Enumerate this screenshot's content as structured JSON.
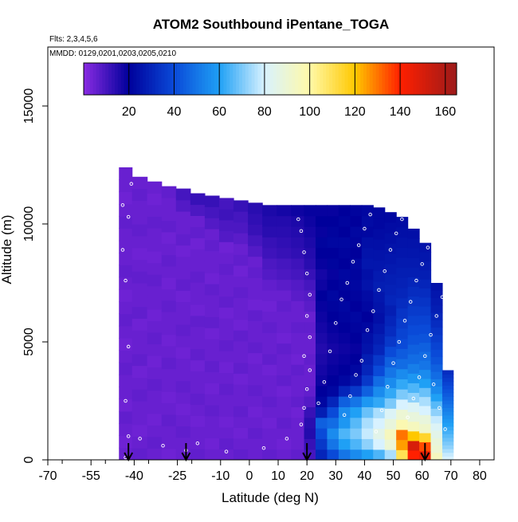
{
  "chart_data": {
    "type": "heatmap",
    "title": "ATOM2 Southbound iPentane_TOGA",
    "flights_note": "Flts: 2,3,4,5,6",
    "dates_note": "MMDD: 0129,0201,0203,0205,0210",
    "xlabel": "Latitude (deg N)",
    "ylabel": "Altitude (m)",
    "xlim": [
      -70,
      85
    ],
    "ylim": [
      0,
      17500
    ],
    "x_ticks": [
      -70,
      -55,
      -40,
      -25,
      -10,
      0,
      10,
      20,
      30,
      40,
      50,
      60,
      70,
      80
    ],
    "y_ticks": [
      0,
      5000,
      10000,
      15000
    ],
    "colorbar": {
      "range": [
        0,
        165
      ],
      "ticks": [
        20,
        40,
        60,
        80,
        100,
        120,
        140,
        160
      ],
      "stops": [
        {
          "v": 0,
          "c": "#8a2be2"
        },
        {
          "v": 20,
          "c": "#00009b"
        },
        {
          "v": 40,
          "c": "#0a4ad8"
        },
        {
          "v": 60,
          "c": "#1fa0f5"
        },
        {
          "v": 80,
          "c": "#d8f2ff"
        },
        {
          "v": 100,
          "c": "#fff9a8"
        },
        {
          "v": 120,
          "c": "#ffc800"
        },
        {
          "v": 140,
          "c": "#ff2000"
        },
        {
          "v": 165,
          "c": "#9b1a1a"
        }
      ]
    },
    "markers_lat": [
      -42,
      -22,
      20,
      61
    ],
    "profiles": [
      {
        "lat": -43.5,
        "top": 12400,
        "values": [
          5,
          4,
          5,
          6,
          4,
          5,
          5,
          6,
          5,
          4,
          5,
          6,
          5,
          4,
          5,
          6,
          5,
          5,
          5,
          6,
          5,
          4,
          5,
          5
        ]
      },
      {
        "lat": -38,
        "top": 12000,
        "values": [
          6,
          5,
          4,
          5,
          5,
          6,
          5,
          4,
          6,
          5,
          5,
          4,
          6,
          5,
          5,
          6,
          5,
          4,
          5,
          6,
          5,
          5,
          6,
          5
        ]
      },
      {
        "lat": -33,
        "top": 11800,
        "values": [
          5,
          6,
          5,
          4,
          5,
          5,
          6,
          5,
          4,
          5,
          6,
          5,
          4,
          5,
          5,
          6,
          5,
          4,
          5,
          5,
          6,
          5,
          4,
          5
        ]
      },
      {
        "lat": -28,
        "top": 11600,
        "values": [
          4,
          5,
          5,
          6,
          5,
          4,
          5,
          5,
          6,
          5,
          4,
          5,
          5,
          6,
          5,
          4,
          5,
          6,
          5,
          4,
          6,
          5,
          5,
          6
        ]
      },
      {
        "lat": -23,
        "top": 11500,
        "values": [
          5,
          5,
          6,
          5,
          4,
          5,
          6,
          5,
          5,
          4,
          5,
          6,
          5,
          5,
          4,
          6,
          5,
          5,
          4,
          6,
          5,
          5,
          8,
          10
        ]
      },
      {
        "lat": -18,
        "top": 11300,
        "values": [
          6,
          5,
          5,
          4,
          5,
          6,
          5,
          5,
          4,
          6,
          5,
          5,
          6,
          4,
          5,
          5,
          6,
          5,
          5,
          4,
          6,
          5,
          9,
          12
        ]
      },
      {
        "lat": -13,
        "top": 11200,
        "values": [
          5,
          4,
          5,
          5,
          6,
          5,
          4,
          5,
          6,
          5,
          5,
          4,
          6,
          5,
          5,
          6,
          4,
          5,
          5,
          6,
          5,
          8,
          10,
          12
        ]
      },
      {
        "lat": -8,
        "top": 11100,
        "values": [
          5,
          6,
          5,
          4,
          5,
          5,
          6,
          5,
          4,
          5,
          6,
          5,
          5,
          4,
          6,
          5,
          5,
          6,
          5,
          4,
          8,
          9,
          11,
          10
        ]
      },
      {
        "lat": -3,
        "top": 11000,
        "values": [
          6,
          5,
          4,
          5,
          6,
          5,
          5,
          4,
          6,
          5,
          5,
          6,
          4,
          5,
          5,
          6,
          5,
          4,
          6,
          5,
          7,
          9,
          10,
          12
        ]
      },
      {
        "lat": 2,
        "top": 10900,
        "values": [
          5,
          5,
          6,
          5,
          4,
          5,
          6,
          5,
          5,
          4,
          6,
          5,
          5,
          6,
          4,
          5,
          5,
          6,
          5,
          8,
          10,
          12,
          13,
          14
        ]
      },
      {
        "lat": 7,
        "top": 10800,
        "values": [
          6,
          5,
          5,
          4,
          5,
          6,
          5,
          5,
          4,
          6,
          5,
          5,
          6,
          5,
          4,
          5,
          6,
          8,
          9,
          11,
          12,
          14,
          15,
          16
        ]
      },
      {
        "lat": 12,
        "top": 10800,
        "values": [
          5,
          4,
          5,
          6,
          5,
          5,
          4,
          6,
          5,
          5,
          6,
          4,
          5,
          5,
          6,
          5,
          7,
          9,
          10,
          12,
          13,
          14,
          15,
          17
        ]
      },
      {
        "lat": 17,
        "top": 10800,
        "values": [
          6,
          5,
          5,
          5,
          4,
          6,
          5,
          5,
          6,
          4,
          5,
          5,
          6,
          5,
          5,
          7,
          8,
          10,
          11,
          13,
          14,
          15,
          16,
          18
        ]
      },
      {
        "lat": 21,
        "top": 10800,
        "values": [
          10,
          12,
          15,
          14,
          12,
          8,
          6,
          5,
          5,
          6,
          5,
          5,
          6,
          5,
          7,
          8,
          10,
          12,
          14,
          15,
          16,
          17,
          18,
          19
        ]
      },
      {
        "lat": 25,
        "top": 10800,
        "values": [
          30,
          35,
          40,
          45,
          28,
          22,
          20,
          18,
          17,
          16,
          15,
          16,
          17,
          18,
          19,
          20,
          18,
          17,
          19,
          20,
          21,
          19,
          20,
          19
        ]
      },
      {
        "lat": 29,
        "top": 10800,
        "values": [
          40,
          50,
          55,
          48,
          40,
          30,
          22,
          20,
          19,
          18,
          17,
          18,
          19,
          20,
          21,
          22,
          20,
          19,
          21,
          20,
          22,
          21,
          20,
          19
        ]
      },
      {
        "lat": 33,
        "top": 10800,
        "values": [
          50,
          60,
          65,
          58,
          55,
          45,
          30,
          22,
          20,
          19,
          18,
          19,
          20,
          21,
          22,
          20,
          21,
          22,
          20,
          21,
          22,
          20,
          21,
          20
        ]
      },
      {
        "lat": 37,
        "top": 10800,
        "values": [
          55,
          65,
          70,
          66,
          60,
          50,
          35,
          25,
          22,
          20,
          19,
          20,
          21,
          22,
          20,
          21,
          22,
          21,
          22,
          20,
          21,
          22,
          20,
          21
        ]
      },
      {
        "lat": 41,
        "top": 10800,
        "values": [
          60,
          72,
          78,
          75,
          68,
          58,
          45,
          35,
          30,
          28,
          25,
          24,
          22,
          20,
          22,
          23,
          25,
          24,
          26,
          25,
          24,
          22,
          23,
          22
        ]
      },
      {
        "lat": 45,
        "top": 10700,
        "values": [
          65,
          80,
          85,
          80,
          75,
          62,
          55,
          48,
          40,
          35,
          30,
          28,
          26,
          24,
          25,
          26,
          28,
          27,
          26,
          25,
          24,
          23,
          22,
          22
        ]
      },
      {
        "lat": 49,
        "top": 10500,
        "values": [
          75,
          90,
          95,
          88,
          82,
          70,
          62,
          55,
          50,
          45,
          40,
          35,
          32,
          30,
          28,
          30,
          29,
          28,
          27,
          26,
          25,
          24,
          23,
          22
        ]
      },
      {
        "lat": 53,
        "top": 10300,
        "values": [
          110,
          125,
          130,
          98,
          90,
          80,
          70,
          62,
          55,
          48,
          44,
          40,
          38,
          36,
          34,
          32,
          30,
          29,
          28,
          27,
          26,
          25,
          24,
          23
        ]
      },
      {
        "lat": 57,
        "top": 9800,
        "values": [
          140,
          150,
          120,
          95,
          88,
          82,
          72,
          65,
          58,
          52,
          48,
          45,
          42,
          40,
          38,
          36,
          34,
          32,
          30,
          28,
          27,
          26,
          25,
          24
        ]
      },
      {
        "lat": 61,
        "top": 9200,
        "values": [
          145,
          135,
          115,
          92,
          88,
          80,
          75,
          68,
          60,
          55,
          50,
          48,
          45,
          42,
          40,
          38,
          36,
          34,
          32,
          30,
          28,
          27,
          26,
          25
        ]
      },
      {
        "lat": 65,
        "top": 7500,
        "values": [
          95,
          90,
          88,
          85,
          82,
          78,
          72,
          66,
          60,
          55,
          52,
          48,
          45,
          42,
          40,
          38,
          36,
          34,
          32,
          30,
          28,
          27,
          26,
          25
        ]
      },
      {
        "lat": 69,
        "top": 3800,
        "values": [
          80,
          78,
          75,
          72,
          70,
          68,
          66,
          64,
          62,
          60,
          58,
          56,
          54,
          52,
          50,
          48,
          46,
          44,
          42,
          40,
          38,
          36,
          34,
          32
        ]
      }
    ],
    "sample_points": [
      [
        -43,
        100
      ],
      [
        -42,
        1000
      ],
      [
        -43,
        2500
      ],
      [
        -42,
        4800
      ],
      [
        -43,
        7600
      ],
      [
        -44,
        8900
      ],
      [
        -42,
        10300
      ],
      [
        -44,
        10800
      ],
      [
        -41,
        11700
      ],
      [
        -38,
        900
      ],
      [
        -30,
        600
      ],
      [
        -22,
        400
      ],
      [
        -18,
        700
      ],
      [
        -8,
        350
      ],
      [
        5,
        500
      ],
      [
        13,
        900
      ],
      [
        18,
        1500
      ],
      [
        19,
        2200
      ],
      [
        20,
        3000
      ],
      [
        21,
        3800
      ],
      [
        19,
        4400
      ],
      [
        21,
        5200
      ],
      [
        20,
        6100
      ],
      [
        21,
        7000
      ],
      [
        20,
        7900
      ],
      [
        19,
        8800
      ],
      [
        18,
        9700
      ],
      [
        17,
        10200
      ],
      [
        24,
        2400
      ],
      [
        26,
        3300
      ],
      [
        28,
        4600
      ],
      [
        30,
        5800
      ],
      [
        32,
        6800
      ],
      [
        34,
        7500
      ],
      [
        36,
        8400
      ],
      [
        38,
        9100
      ],
      [
        40,
        9800
      ],
      [
        42,
        10400
      ],
      [
        33,
        1900
      ],
      [
        35,
        2700
      ],
      [
        37,
        3600
      ],
      [
        39,
        4200
      ],
      [
        41,
        5500
      ],
      [
        43,
        6300
      ],
      [
        45,
        7200
      ],
      [
        47,
        8000
      ],
      [
        49,
        8900
      ],
      [
        51,
        9600
      ],
      [
        53,
        10200
      ],
      [
        44,
        1200
      ],
      [
        46,
        2100
      ],
      [
        48,
        3100
      ],
      [
        50,
        4100
      ],
      [
        52,
        5000
      ],
      [
        54,
        5900
      ],
      [
        56,
        6700
      ],
      [
        58,
        7600
      ],
      [
        60,
        8300
      ],
      [
        62,
        9000
      ],
      [
        55,
        1800
      ],
      [
        57,
        2600
      ],
      [
        59,
        3500
      ],
      [
        61,
        4400
      ],
      [
        63,
        5300
      ],
      [
        65,
        6100
      ],
      [
        67,
        6900
      ],
      [
        64,
        3200
      ],
      [
        66,
        2200
      ],
      [
        68,
        1300
      ]
    ]
  }
}
